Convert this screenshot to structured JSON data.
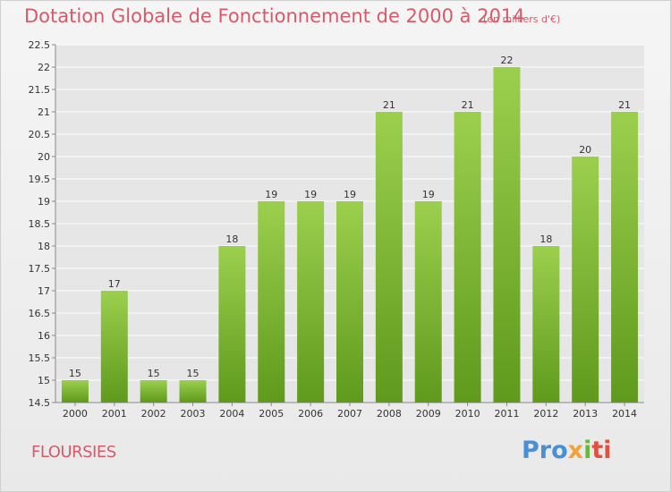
{
  "chart_data": {
    "type": "bar",
    "title": "Dotation Globale de Fonctionnement de 2000 à 2014",
    "subtitle": "(en milliers d'€)",
    "categories": [
      "2000",
      "2001",
      "2002",
      "2003",
      "2004",
      "2005",
      "2006",
      "2007",
      "2008",
      "2009",
      "2010",
      "2011",
      "2012",
      "2013",
      "2014"
    ],
    "values": [
      15,
      17,
      15,
      15,
      18,
      19,
      19,
      19,
      21,
      19,
      21,
      22,
      18,
      20,
      21
    ],
    "value_labels": [
      "15",
      "17",
      "15",
      "15",
      "18",
      "19",
      "19",
      "19",
      "21",
      "19",
      "21",
      "22",
      "18",
      "20",
      "21"
    ],
    "ylim": [
      14.5,
      22.5
    ],
    "yticks": [
      14.5,
      15,
      15.5,
      16,
      16.5,
      17,
      17.5,
      18,
      18.5,
      19,
      19.5,
      20,
      20.5,
      21,
      21.5,
      22,
      22.5
    ],
    "ytick_labels": [
      "14.5",
      "15",
      "15.5",
      "16",
      "16.5",
      "17",
      "17.5",
      "18",
      "18.5",
      "19",
      "19.5",
      "20",
      "20.5",
      "21",
      "21.5",
      "22",
      "22.5"
    ],
    "grid": true,
    "bar_color_top": "#9ccf4e",
    "bar_color_bottom": "#5f9a1c"
  },
  "footer": {
    "commune": "FLOURSIES",
    "logo": {
      "p1": "Pro",
      "p2": "x",
      "p3": "i",
      "p4": "ti"
    }
  },
  "colors": {
    "title": "#d85a6a",
    "grid": "#ffffff"
  }
}
